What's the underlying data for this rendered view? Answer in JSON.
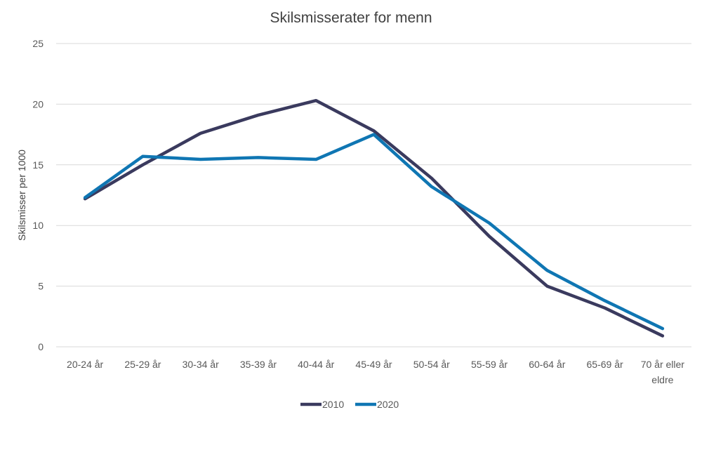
{
  "chart_data": {
    "type": "line",
    "title": "Skilsmisserater for menn",
    "xlabel": "",
    "ylabel": "Skilsmisser per 1000",
    "ylim": [
      0,
      25
    ],
    "yticks": [
      0,
      5,
      10,
      15,
      20,
      25
    ],
    "grid": true,
    "legend_position": "bottom",
    "categories": [
      "20-24 år",
      "25-29 år",
      "30-34 år",
      "35-39 år",
      "40-44 år",
      "45-49 år",
      "50-54 år",
      "55-59 år",
      "60-64 år",
      "65-69 år",
      "70 år eller eldre"
    ],
    "series": [
      {
        "name": "2010",
        "color": "#3a3a5e",
        "values": [
          12.2,
          15.0,
          17.6,
          19.1,
          20.3,
          17.8,
          13.9,
          9.1,
          5.0,
          3.2,
          0.9
        ]
      },
      {
        "name": "2020",
        "color": "#0f76b3",
        "values": [
          12.3,
          15.7,
          15.45,
          15.6,
          15.45,
          17.5,
          13.2,
          10.2,
          6.3,
          3.8,
          1.5
        ]
      }
    ]
  }
}
